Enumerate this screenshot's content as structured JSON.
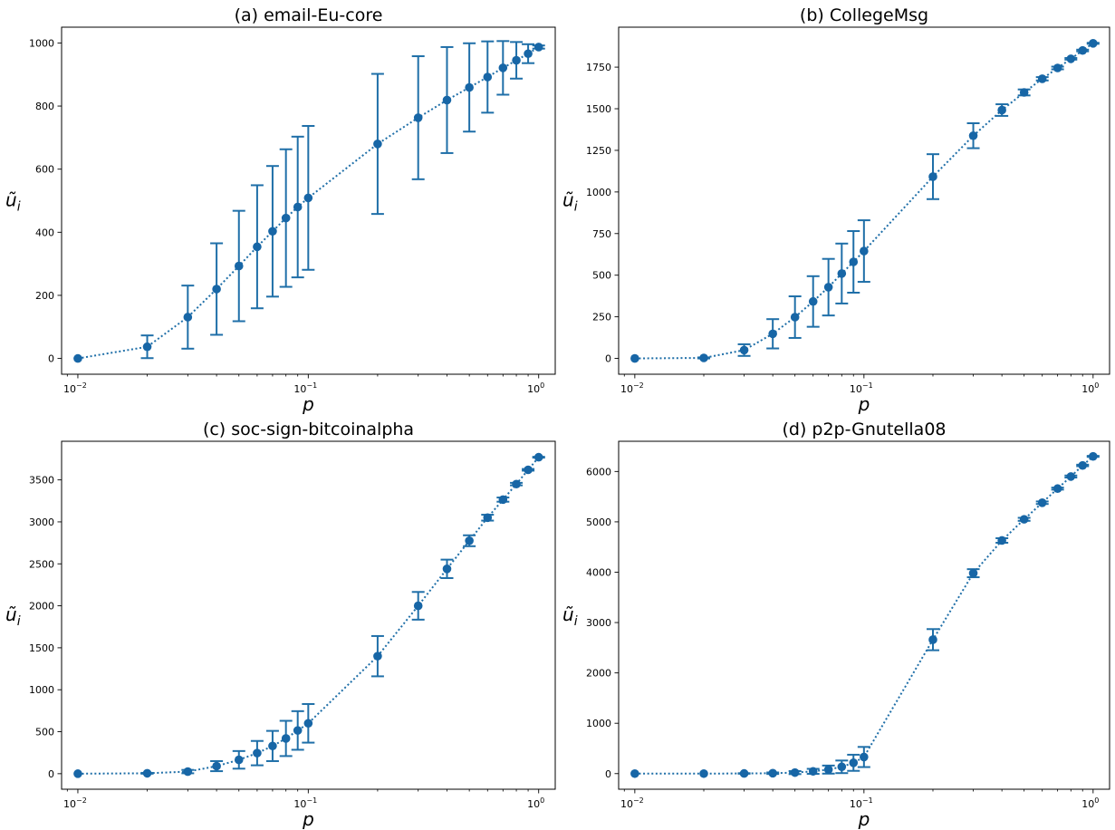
{
  "colors": {
    "series": "#1f6fa8",
    "marker": "#1766a6",
    "axis": "#000000"
  },
  "chart_data": [
    {
      "type": "line",
      "title": "(a) email-Eu-core",
      "xlabel": "p",
      "ylabel": "ũ",
      "ylabel_sub": "i",
      "xscale": "log",
      "xlim": [
        0.0085,
        1.18
      ],
      "ylim": [
        -50,
        1050
      ],
      "x_ticks": [
        0.01,
        0.1,
        1
      ],
      "x_tick_labels": [
        {
          "base": "10",
          "exp": "−2"
        },
        {
          "base": "10",
          "exp": "−1"
        },
        {
          "base": "10",
          "exp": "0"
        }
      ],
      "y_ticks": [
        0,
        200,
        400,
        600,
        800,
        1000
      ],
      "y_tick_labels": [
        "0",
        "200",
        "400",
        "600",
        "800",
        "1000"
      ],
      "line_style": "dotted",
      "x": [
        0.01,
        0.02,
        0.03,
        0.04,
        0.05,
        0.06,
        0.07,
        0.08,
        0.09,
        0.1,
        0.2,
        0.3,
        0.4,
        0.5,
        0.6,
        0.7,
        0.8,
        0.9,
        1.0
      ],
      "y": [
        0,
        37,
        131,
        220,
        293,
        354,
        403,
        445,
        480,
        509,
        680,
        763,
        819,
        859,
        892,
        921,
        945,
        966,
        987
      ],
      "yerr": [
        0,
        36,
        100,
        145,
        175,
        195,
        207,
        218,
        223,
        228,
        222,
        195,
        168,
        140,
        113,
        85,
        58,
        30,
        5
      ]
    },
    {
      "type": "line",
      "title": "(b) CollegeMsg",
      "xlabel": "p",
      "ylabel": "ũ",
      "ylabel_sub": "i",
      "xscale": "log",
      "xlim": [
        0.0085,
        1.18
      ],
      "ylim": [
        -95,
        1990
      ],
      "x_ticks": [
        0.01,
        0.1,
        1
      ],
      "x_tick_labels": [
        {
          "base": "10",
          "exp": "−2"
        },
        {
          "base": "10",
          "exp": "−1"
        },
        {
          "base": "10",
          "exp": "0"
        }
      ],
      "y_ticks": [
        0,
        250,
        500,
        750,
        1000,
        1250,
        1500,
        1750
      ],
      "y_tick_labels": [
        "0",
        "250",
        "500",
        "750",
        "1000",
        "1250",
        "1500",
        "1750"
      ],
      "line_style": "dotted",
      "x": [
        0.01,
        0.02,
        0.03,
        0.04,
        0.05,
        0.06,
        0.07,
        0.08,
        0.09,
        0.1,
        0.2,
        0.3,
        0.4,
        0.5,
        0.6,
        0.7,
        0.8,
        0.9,
        1.0
      ],
      "y": [
        0,
        3,
        50,
        148,
        248,
        342,
        428,
        510,
        580,
        645,
        1092,
        1338,
        1492,
        1598,
        1680,
        1745,
        1800,
        1850,
        1893
      ],
      "yerr": [
        0,
        3,
        35,
        88,
        125,
        152,
        170,
        180,
        185,
        185,
        135,
        75,
        35,
        18,
        10,
        8,
        5,
        5,
        3
      ]
    },
    {
      "type": "line",
      "title": "(c) soc-sign-bitcoinalpha",
      "xlabel": "p",
      "ylabel": "ũ",
      "ylabel_sub": "i",
      "xscale": "log",
      "xlim": [
        0.0085,
        1.18
      ],
      "ylim": [
        -185,
        3960
      ],
      "x_ticks": [
        0.01,
        0.1,
        1
      ],
      "x_tick_labels": [
        {
          "base": "10",
          "exp": "−2"
        },
        {
          "base": "10",
          "exp": "−1"
        },
        {
          "base": "10",
          "exp": "0"
        }
      ],
      "y_ticks": [
        0,
        500,
        1000,
        1500,
        2000,
        2500,
        3000,
        3500
      ],
      "y_tick_labels": [
        "0",
        "500",
        "1000",
        "1500",
        "2000",
        "2500",
        "3000",
        "3500"
      ],
      "line_style": "dotted",
      "x": [
        0.01,
        0.02,
        0.03,
        0.04,
        0.05,
        0.06,
        0.07,
        0.08,
        0.09,
        0.1,
        0.2,
        0.3,
        0.4,
        0.5,
        0.6,
        0.7,
        0.8,
        0.9,
        1.0
      ],
      "y": [
        0,
        5,
        25,
        90,
        165,
        245,
        330,
        420,
        515,
        600,
        1400,
        2000,
        2440,
        2775,
        3050,
        3265,
        3450,
        3620,
        3770
      ],
      "yerr": [
        0,
        5,
        20,
        60,
        105,
        145,
        180,
        210,
        230,
        230,
        240,
        165,
        110,
        65,
        35,
        25,
        15,
        10,
        5
      ]
    },
    {
      "type": "line",
      "title": "(d) p2p-Gnutella08",
      "xlabel": "p",
      "ylabel": "ũ",
      "ylabel_sub": "i",
      "xscale": "log",
      "xlim": [
        0.0085,
        1.18
      ],
      "ylim": [
        -310,
        6600
      ],
      "x_ticks": [
        0.01,
        0.1,
        1
      ],
      "x_tick_labels": [
        {
          "base": "10",
          "exp": "−2"
        },
        {
          "base": "10",
          "exp": "−1"
        },
        {
          "base": "10",
          "exp": "0"
        }
      ],
      "y_ticks": [
        0,
        1000,
        2000,
        3000,
        4000,
        5000,
        6000
      ],
      "y_tick_labels": [
        "0",
        "1000",
        "2000",
        "3000",
        "4000",
        "5000",
        "6000"
      ],
      "line_style": "dotted",
      "x": [
        0.01,
        0.02,
        0.03,
        0.04,
        0.05,
        0.06,
        0.07,
        0.08,
        0.09,
        0.1,
        0.2,
        0.3,
        0.4,
        0.5,
        0.6,
        0.7,
        0.8,
        0.9,
        1.0
      ],
      "y": [
        0,
        0,
        3,
        8,
        20,
        45,
        80,
        135,
        215,
        330,
        2660,
        3980,
        4630,
        5050,
        5380,
        5660,
        5900,
        6120,
        6300
      ],
      "yerr": [
        0,
        0,
        5,
        15,
        30,
        50,
        80,
        125,
        160,
        200,
        210,
        80,
        45,
        30,
        25,
        20,
        20,
        15,
        10
      ]
    }
  ]
}
